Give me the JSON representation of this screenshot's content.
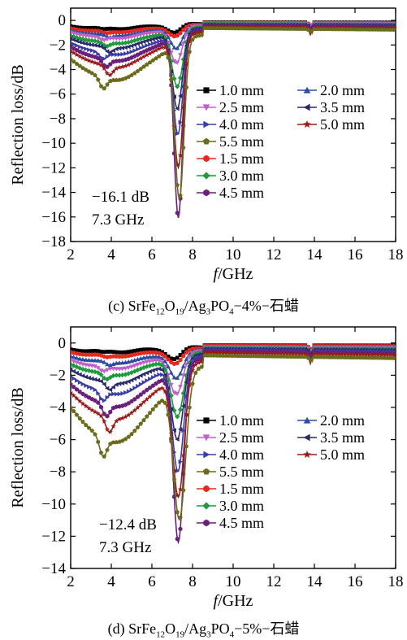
{
  "chart_data": [
    {
      "type": "line",
      "panel": "c",
      "xlabel_italic": "f",
      "xlabel_rest": "/GHz",
      "ylabel": "Reflection loss/dB",
      "xlim": [
        2,
        18
      ],
      "ylim": [
        -18,
        1
      ],
      "xticks": [
        2,
        4,
        6,
        8,
        10,
        12,
        14,
        16,
        18
      ],
      "yticks": [
        0,
        -2,
        -4,
        -6,
        -8,
        -10,
        -12,
        -14,
        -16,
        -18
      ],
      "annotation": [
        "−16.1 dB",
        "7.3 GHz"
      ],
      "legend_placement": "right",
      "caption": {
        "prefix": "(c) SrFe",
        "s1": "12",
        "m1": "O",
        "s2": "19",
        "m2": "/Ag",
        "s3": "3",
        "m3": "PO",
        "s4": "4",
        "suffix": "−4%−石蜡"
      },
      "series": [
        {
          "name": "1.0 mm",
          "color": "#000000",
          "marker": "square",
          "peak_x": 7.1,
          "peak_y": -1.0,
          "base": -0.4,
          "width": 0.45
        },
        {
          "name": "1.5 mm",
          "color": "#e8281e",
          "marker": "circle",
          "peak_x": 7.15,
          "peak_y": -1.3,
          "base": -0.6,
          "width": 0.45
        },
        {
          "name": "2.0 mm",
          "color": "#2b4ea0",
          "marker": "triangle-up",
          "peak_x": 7.2,
          "peak_y": -2.3,
          "base": -0.8,
          "width": 0.42
        },
        {
          "name": "2.5 mm",
          "color": "#c060c8",
          "marker": "triangle-down",
          "peak_x": 7.2,
          "peak_y": -3.5,
          "base": -1.0,
          "width": 0.4
        },
        {
          "name": "3.0 mm",
          "color": "#1f9a3c",
          "marker": "diamond",
          "peak_x": 7.25,
          "peak_y": -5.4,
          "base": -1.3,
          "width": 0.38
        },
        {
          "name": "3.5 mm",
          "color": "#2a2a6a",
          "marker": "triangle-left",
          "peak_x": 7.25,
          "peak_y": -7.2,
          "base": -1.6,
          "width": 0.36
        },
        {
          "name": "4.0 mm",
          "color": "#3c3ca8",
          "marker": "triangle-right",
          "peak_x": 7.28,
          "peak_y": -9.3,
          "base": -2.0,
          "width": 0.34
        },
        {
          "name": "4.5 mm",
          "color": "#6a1f7a",
          "marker": "hexagon",
          "peak_x": 7.3,
          "peak_y": -16.1,
          "base": -2.4,
          "width": 0.3
        },
        {
          "name": "5.0 mm",
          "color": "#9a1a1a",
          "marker": "star",
          "peak_x": 7.3,
          "peak_y": -12.0,
          "base": -2.8,
          "width": 0.32
        },
        {
          "name": "5.5 mm",
          "color": "#6b6b1c",
          "marker": "pentagon",
          "peak_x": 7.35,
          "peak_y": -14.6,
          "base": -3.6,
          "width": 0.32
        }
      ]
    },
    {
      "type": "line",
      "panel": "d",
      "xlabel_italic": "f",
      "xlabel_rest": "/GHz",
      "ylabel": "Reflection loss/dB",
      "xlim": [
        2,
        18
      ],
      "ylim": [
        -14,
        1
      ],
      "xticks": [
        2,
        4,
        6,
        8,
        10,
        12,
        14,
        16,
        18
      ],
      "yticks": [
        0,
        -2,
        -4,
        -6,
        -8,
        -10,
        -12,
        -14
      ],
      "annotation": [
        "−12.4 dB",
        "7.3 GHz"
      ],
      "legend_placement": "right",
      "caption": {
        "prefix": "(d) SrFe",
        "s1": "12",
        "m1": "O",
        "s2": "19",
        "m2": "/Ag",
        "s3": "3",
        "m3": "PO",
        "s4": "4",
        "suffix": "−5%−石蜡"
      },
      "series": [
        {
          "name": "1.0 mm",
          "color": "#000000",
          "marker": "square",
          "peak_x": 7.1,
          "peak_y": -1.0,
          "base": -0.3,
          "width": 0.5
        },
        {
          "name": "1.5 mm",
          "color": "#e8281e",
          "marker": "circle",
          "peak_x": 7.15,
          "peak_y": -1.3,
          "base": -0.5,
          "width": 0.5
        },
        {
          "name": "2.0 mm",
          "color": "#2b4ea0",
          "marker": "triangle-up",
          "peak_x": 7.2,
          "peak_y": -2.2,
          "base": -0.8,
          "width": 0.48
        },
        {
          "name": "2.5 mm",
          "color": "#c060c8",
          "marker": "triangle-down",
          "peak_x": 7.2,
          "peak_y": -3.2,
          "base": -1.1,
          "width": 0.46
        },
        {
          "name": "3.0 mm",
          "color": "#1f9a3c",
          "marker": "diamond",
          "peak_x": 7.25,
          "peak_y": -4.6,
          "base": -1.4,
          "width": 0.44
        },
        {
          "name": "3.5 mm",
          "color": "#2a2a6a",
          "marker": "triangle-left",
          "peak_x": 7.25,
          "peak_y": -6.0,
          "base": -1.8,
          "width": 0.42
        },
        {
          "name": "4.0 mm",
          "color": "#3c3ca8",
          "marker": "triangle-right",
          "peak_x": 7.28,
          "peak_y": -8.0,
          "base": -2.3,
          "width": 0.4
        },
        {
          "name": "4.5 mm",
          "color": "#6a1f7a",
          "marker": "hexagon",
          "peak_x": 7.3,
          "peak_y": -12.4,
          "base": -2.9,
          "width": 0.36
        },
        {
          "name": "5.0 mm",
          "color": "#9a1a1a",
          "marker": "star",
          "peak_x": 7.3,
          "peak_y": -9.6,
          "base": -3.5,
          "width": 0.4
        },
        {
          "name": "5.5 mm",
          "color": "#6b6b1c",
          "marker": "pentagon",
          "peak_x": 7.35,
          "peak_y": -11.0,
          "base": -4.6,
          "width": 0.42
        }
      ]
    }
  ]
}
